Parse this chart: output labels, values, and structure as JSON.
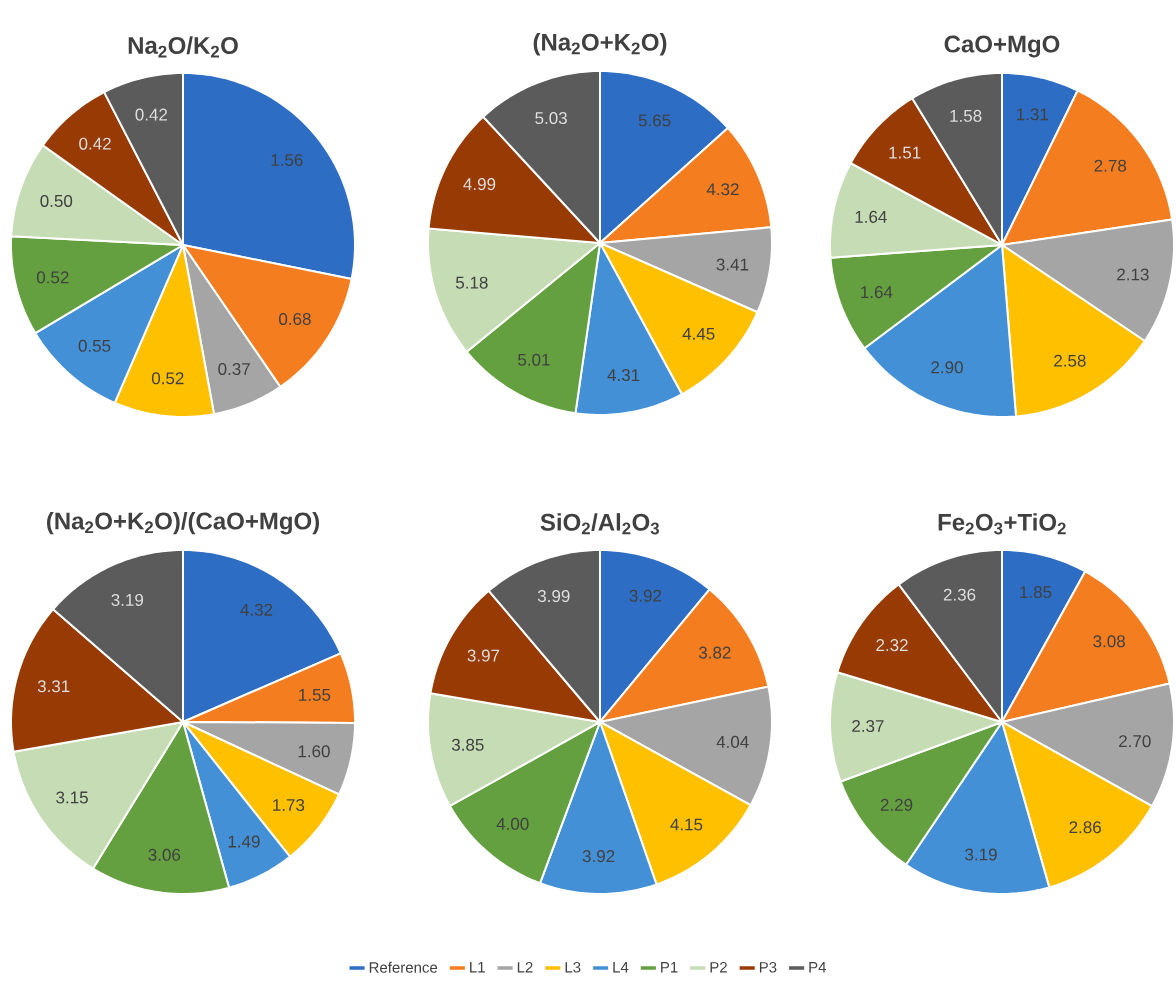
{
  "chart_data": [
    {
      "type": "pie",
      "title": "Na$_{2}$O/K$_{2}$O",
      "categories": [
        null,
        null,
        null,
        null,
        null,
        null,
        null,
        null,
        null
      ],
      "values": [
        1.56,
        0.68,
        0.37,
        0.52,
        0.55,
        0.52,
        0.5,
        0.42,
        0.42
      ],
      "value_labels": [
        "1.56",
        "0.68",
        "0.37",
        "0.52",
        "0.55",
        "0.52",
        "0.50",
        "0.42",
        "0.42"
      ],
      "colors": [
        "#2e6dc4",
        "#f47d20",
        "#a5a5a5",
        "#ffc000",
        "#4390d6",
        "#64a040",
        "#c5dcb4",
        "#983a04",
        "#5b5b5b"
      ]
    },
    {
      "type": "pie",
      "title": "(Na$_{2}$O+K$_{2}$O)",
      "categories": [
        null,
        null,
        null,
        null,
        null,
        null,
        null,
        null,
        null
      ],
      "values": [
        5.65,
        4.32,
        3.41,
        4.45,
        4.31,
        5.01,
        5.18,
        4.99,
        5.03
      ],
      "value_labels": [
        "5.65",
        "4.32",
        "3.41",
        "4.45",
        "4.31",
        "5.01",
        "5.18",
        "4.99",
        "5.03"
      ],
      "colors": [
        "#2e6dc4",
        "#f47d20",
        "#a5a5a5",
        "#ffc000",
        "#4390d6",
        "#64a040",
        "#c5dcb4",
        "#983a04",
        "#5b5b5b"
      ]
    },
    {
      "type": "pie",
      "title": "CaO+MgO",
      "categories": [
        null,
        null,
        null,
        null,
        null,
        null,
        null,
        null,
        null
      ],
      "values": [
        1.31,
        2.78,
        2.13,
        2.58,
        2.9,
        1.64,
        1.64,
        1.51,
        1.58
      ],
      "value_labels": [
        "1.31",
        "2.78",
        "2.13",
        "2.58",
        "2.90",
        "1.64",
        "1.64",
        "1.51",
        "1.58"
      ],
      "colors": [
        "#2e6dc4",
        "#f47d20",
        "#a5a5a5",
        "#ffc000",
        "#4390d6",
        "#64a040",
        "#c5dcb4",
        "#983a04",
        "#5b5b5b"
      ]
    },
    {
      "type": "pie",
      "title": "(Na$_{2}$O+K$_{2}$O)/(CaO+MgO)",
      "categories": [
        null,
        null,
        null,
        null,
        null,
        null,
        null,
        null,
        null
      ],
      "values": [
        4.32,
        1.55,
        1.6,
        1.73,
        1.49,
        3.06,
        3.15,
        3.31,
        3.19
      ],
      "value_labels": [
        "4.32",
        "1.55",
        "1.60",
        "1.73",
        "1.49",
        "3.06",
        "3.15",
        "3.31",
        "3.19"
      ],
      "colors": [
        "#2e6dc4",
        "#f47d20",
        "#a5a5a5",
        "#ffc000",
        "#4390d6",
        "#64a040",
        "#c5dcb4",
        "#983a04",
        "#5b5b5b"
      ]
    },
    {
      "type": "pie",
      "title": "SiO$_{2}$/Al$_{2}$O$_{3}$",
      "categories": [
        null,
        null,
        null,
        null,
        null,
        null,
        null,
        null,
        null
      ],
      "values": [
        3.92,
        3.82,
        4.04,
        4.15,
        3.92,
        4.0,
        3.85,
        3.97,
        3.99
      ],
      "value_labels": [
        "3.92",
        "3.82",
        "4.04",
        "4.15",
        "3.92",
        "4.00",
        "3.85",
        "3.97",
        "3.99"
      ],
      "colors": [
        "#2e6dc4",
        "#f47d20",
        "#a5a5a5",
        "#ffc000",
        "#4390d6",
        "#64a040",
        "#c5dcb4",
        "#983a04",
        "#5b5b5b"
      ]
    },
    {
      "type": "pie",
      "title": "Fe$_{2}$O$_{3}$+TiO$_{2}$",
      "categories": [
        "Reference",
        "L1",
        "L2",
        "L3",
        "L4",
        "P1",
        "P2",
        "P3",
        "P4"
      ],
      "values": [
        1.85,
        3.08,
        2.7,
        2.86,
        3.19,
        2.29,
        2.37,
        2.32,
        2.36
      ],
      "value_labels": [
        "1.85",
        "3.08",
        "2.70",
        "2.86",
        "3.19",
        "2.29",
        "2.37",
        "2.32",
        "2.36"
      ],
      "colors": [
        "#2e6dc4",
        "#f47d20",
        "#a5a5a5",
        "#ffc000",
        "#4390d6",
        "#64a040",
        "#c5dcb4",
        "#983a04",
        "#5b5b5b"
      ],
      "legend": "bottom"
    }
  ]
}
